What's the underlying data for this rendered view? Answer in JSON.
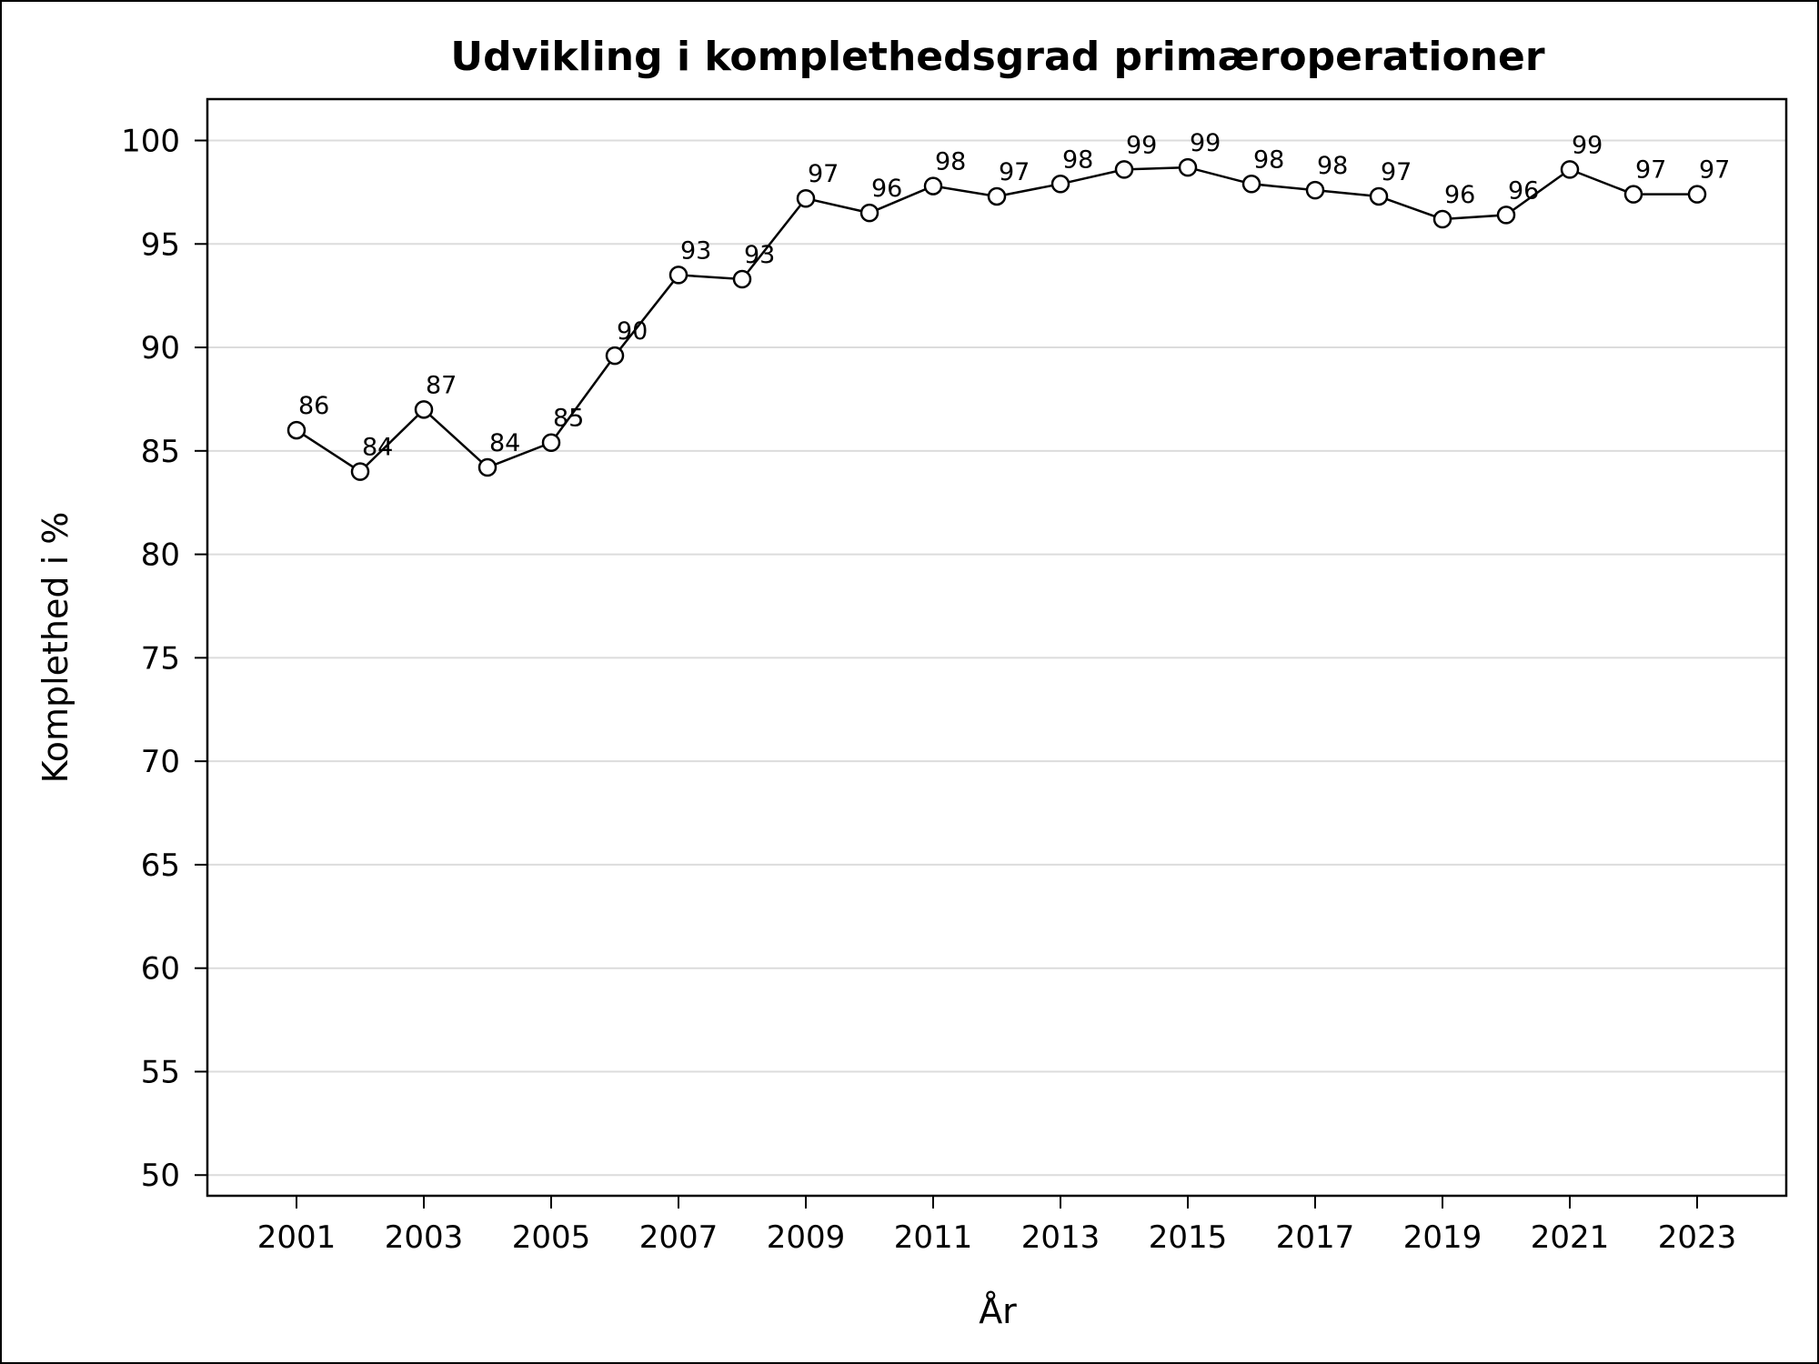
{
  "chart_data": {
    "type": "line",
    "title": "Udvikling i komplethedsgrad primæroperationer",
    "xlabel": "År",
    "ylabel": "Komplethed i %",
    "x": [
      2001,
      2002,
      2003,
      2004,
      2005,
      2006,
      2007,
      2008,
      2009,
      2010,
      2011,
      2012,
      2013,
      2014,
      2015,
      2016,
      2017,
      2018,
      2019,
      2020,
      2021,
      2022,
      2023
    ],
    "series": [
      {
        "values": [
          86.0,
          84.0,
          87.0,
          84.2,
          85.4,
          89.6,
          93.5,
          93.3,
          97.2,
          96.5,
          97.8,
          97.3,
          97.9,
          98.6,
          98.7,
          97.9,
          97.6,
          97.3,
          96.2,
          96.4,
          98.6,
          97.4,
          97.4
        ],
        "labels": [
          "86",
          "84",
          "87",
          "84",
          "85",
          "90",
          "93",
          "93",
          "97",
          "96",
          "98",
          "97",
          "98",
          "99",
          "99",
          "98",
          "98",
          "97",
          "96",
          "96",
          "99",
          "97",
          "97"
        ]
      }
    ],
    "xticks": [
      "2001",
      "2003",
      "2005",
      "2007",
      "2009",
      "2011",
      "2013",
      "2015",
      "2017",
      "2019",
      "2021",
      "2023"
    ],
    "yticks": [
      "50",
      "55",
      "60",
      "65",
      "70",
      "75",
      "80",
      "85",
      "90",
      "95",
      "100"
    ],
    "ylim": [
      49,
      102
    ],
    "xlim": [
      1999.6,
      2024.4
    ],
    "grid": "horizontal",
    "marker": "open-circle",
    "colors": {
      "line": "#000000",
      "grid": "#dcdcdc",
      "frame": "#000000"
    }
  }
}
